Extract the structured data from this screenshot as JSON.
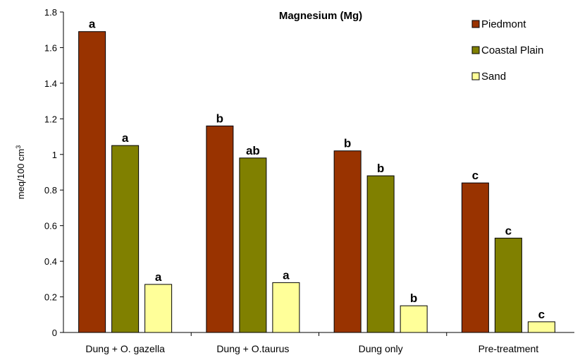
{
  "chart_data": {
    "type": "bar",
    "title": "Magnesium (Mg)",
    "ylabel": "meq/100 cm",
    "ylabel_superscript": "3",
    "xlabel": "",
    "ylim": [
      0,
      1.8
    ],
    "yticks": [
      0,
      0.2,
      0.4,
      0.6,
      0.8,
      1,
      1.2,
      1.4,
      1.6,
      1.8
    ],
    "ytick_labels": [
      "0",
      "0.2",
      "0.4",
      "0.6",
      "0.8",
      "1",
      "1.2",
      "1.4",
      "1.6",
      "1.8"
    ],
    "grid": false,
    "legend_position": "top-right",
    "categories": [
      "Dung + O. gazella",
      "Dung + O.taurus",
      "Dung only",
      "Pre-treatment"
    ],
    "series": [
      {
        "name": "Piedmont",
        "color": "#993300",
        "values": [
          1.69,
          1.16,
          1.02,
          0.84
        ],
        "sig": [
          "a",
          "b",
          "b",
          "c"
        ]
      },
      {
        "name": "Coastal Plain",
        "color": "#808000",
        "values": [
          1.05,
          0.98,
          0.88,
          0.53
        ],
        "sig": [
          "a",
          "ab",
          "b",
          "c"
        ]
      },
      {
        "name": "Sand",
        "color": "#ffff99",
        "values": [
          0.27,
          0.28,
          0.15,
          0.06
        ],
        "sig": [
          "a",
          "a",
          "b",
          "c"
        ]
      }
    ]
  }
}
